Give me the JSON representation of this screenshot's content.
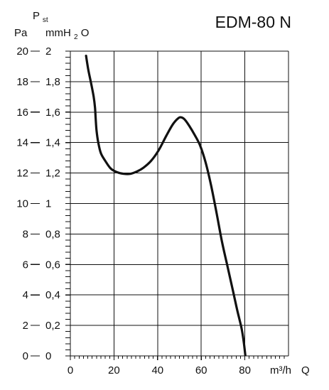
{
  "chart_data": {
    "type": "line",
    "title": "EDM-80 N",
    "y_axis_heading": "Pst",
    "y_axis_heading_main": "P",
    "y_axis_heading_sub": "st",
    "ylabel_left": "Pa",
    "ylabel_right": "mmH2O",
    "ylabel_right_main": "mmH",
    "ylabel_right_sub": "2",
    "ylabel_right_tail": "O",
    "xlabel_unit": "m³/h",
    "xlabel": "Q",
    "xlim": [
      0,
      100
    ],
    "ylim": [
      0,
      20
    ],
    "ylim_mmH2O": [
      0,
      2
    ],
    "grid": true,
    "x_ticks": [
      0,
      20,
      40,
      60,
      80
    ],
    "x_tick_labels": [
      "0",
      "20",
      "40",
      "60",
      "80"
    ],
    "y_ticks_pa": [
      0,
      2,
      4,
      6,
      8,
      10,
      12,
      14,
      16,
      18,
      20
    ],
    "y_tick_labels_pa": [
      "0",
      "2",
      "4",
      "6",
      "8",
      "10",
      "12",
      "14",
      "16",
      "18",
      "20"
    ],
    "y_tick_labels_mm": [
      "0",
      "0,2",
      "0,4",
      "0,6",
      "0,8",
      "1",
      "1,2",
      "1,4",
      "1,6",
      "1,8",
      "2"
    ],
    "series": [
      {
        "x": [
          7.2,
          8.2,
          9.5,
          10.7,
          11.3,
          11.6,
          12.0,
          12.8,
          14.0,
          16.0,
          18.5,
          21.5,
          24.5,
          27.5,
          30.5,
          33.5,
          37.0,
          40.5,
          44.0,
          47.0,
          49.5,
          51.0,
          52.5,
          54.5,
          57.0,
          59.5,
          62.0,
          64.5,
          67.0,
          69.5,
          72.0,
          74.5,
          76.5,
          78.5,
          79.5,
          80.2
        ],
        "y": [
          19.7,
          18.8,
          17.9,
          17.0,
          16.3,
          15.6,
          14.8,
          14.0,
          13.3,
          12.8,
          12.3,
          12.05,
          11.95,
          11.95,
          12.1,
          12.35,
          12.8,
          13.5,
          14.45,
          15.2,
          15.6,
          15.65,
          15.5,
          15.1,
          14.5,
          13.8,
          12.7,
          11.2,
          9.4,
          7.5,
          5.9,
          4.3,
          3.0,
          1.8,
          0.9,
          0.05
        ]
      }
    ],
    "color": "#111111"
  }
}
